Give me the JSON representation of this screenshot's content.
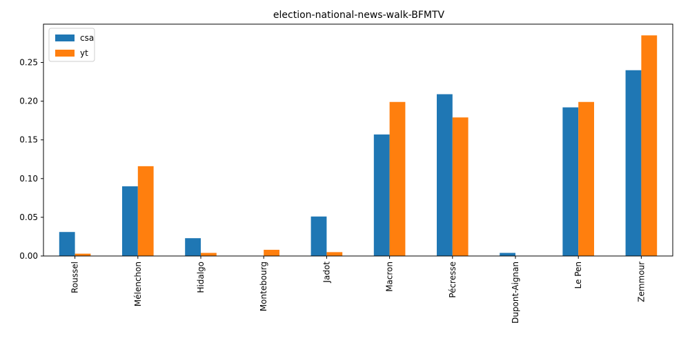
{
  "chart_data": {
    "type": "bar",
    "title": "election-national-news-walk-BFMTV",
    "xlabel": "",
    "ylabel": "",
    "categories": [
      "Roussel",
      "Mélenchon",
      "Hidalgo",
      "Montebourg",
      "Jadot",
      "Macron",
      "Pécresse",
      "Dupont-Aignan",
      "Le Pen",
      "Zemmour"
    ],
    "series": [
      {
        "name": "csa",
        "color": "#1f77b4",
        "values": [
          0.031,
          0.09,
          0.023,
          0.0,
          0.051,
          0.157,
          0.209,
          0.004,
          0.192,
          0.24
        ]
      },
      {
        "name": "yt",
        "color": "#ff7f0e",
        "values": [
          0.003,
          0.116,
          0.004,
          0.008,
          0.005,
          0.199,
          0.179,
          0.0,
          0.199,
          0.285
        ]
      }
    ],
    "ylim": [
      0,
      0.2995
    ],
    "yticks": [
      0.0,
      0.05,
      0.1,
      0.15,
      0.2,
      0.25
    ],
    "ytick_labels": [
      "0.00",
      "0.05",
      "0.10",
      "0.15",
      "0.20",
      "0.25"
    ],
    "legend": "top-left",
    "grid": false
  }
}
